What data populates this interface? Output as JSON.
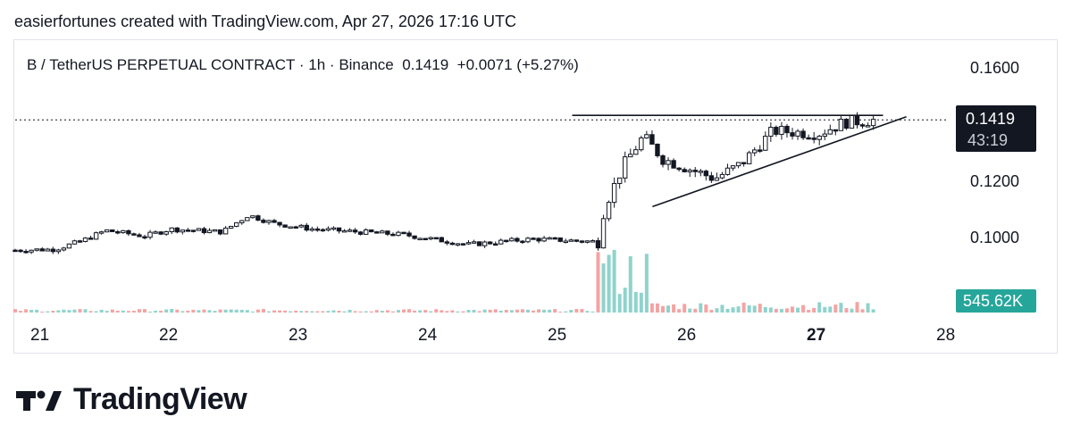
{
  "header": {
    "caption": "easierfortunes created with TradingView.com, Apr 27, 2026 17:16 UTC"
  },
  "legend": {
    "symbol": "B / TetherUS PERPETUAL CONTRACT",
    "sep1": "·",
    "interval": "1h",
    "sep2": "·",
    "exchange": "Binance",
    "last": "0.1419",
    "change": "+0.0071 (+5.27%)"
  },
  "price_axis": {
    "ticks": [
      "0.1600",
      "0.1200",
      "0.1000"
    ],
    "last_price_label": "0.1419",
    "countdown": "43:19",
    "volume_label": "545.62K"
  },
  "time_axis": {
    "ticks": [
      {
        "label": "21",
        "bold": false
      },
      {
        "label": "22",
        "bold": false
      },
      {
        "label": "23",
        "bold": false
      },
      {
        "label": "24",
        "bold": false
      },
      {
        "label": "25",
        "bold": false
      },
      {
        "label": "26",
        "bold": false
      },
      {
        "label": "27",
        "bold": true
      },
      {
        "label": "28",
        "bold": false
      }
    ]
  },
  "brand": {
    "name": "TradingView",
    "logo_icon": "tradingview-logo-icon"
  },
  "colors": {
    "up": "#26a69a",
    "down": "#ef5350",
    "candle": "#131722",
    "volume_up": "#8fd3cc",
    "volume_down": "#f5a3a3"
  },
  "chart_data": {
    "type": "candlestick",
    "interval": "1h",
    "ylim": [
      0.0905,
      0.1705
    ],
    "last_price": 0.1419,
    "x_ticks": [
      "21",
      "22",
      "23",
      "24",
      "25",
      "26",
      "27",
      "28"
    ],
    "keypoints": [
      {
        "day": 21.0,
        "close": 0.0955
      },
      {
        "day": 21.3,
        "close": 0.0958
      },
      {
        "day": 21.5,
        "close": 0.0985
      },
      {
        "day": 21.7,
        "close": 0.1025
      },
      {
        "day": 22.0,
        "close": 0.1005
      },
      {
        "day": 22.2,
        "close": 0.103
      },
      {
        "day": 22.6,
        "close": 0.102
      },
      {
        "day": 22.8,
        "close": 0.108
      },
      {
        "day": 23.0,
        "close": 0.105
      },
      {
        "day": 23.3,
        "close": 0.103
      },
      {
        "day": 24.0,
        "close": 0.101
      },
      {
        "day": 24.5,
        "close": 0.0975
      },
      {
        "day": 25.0,
        "close": 0.0995
      },
      {
        "day": 25.5,
        "close": 0.0985
      },
      {
        "day": 25.55,
        "close": 0.111
      },
      {
        "day": 25.7,
        "close": 0.126
      },
      {
        "day": 25.85,
        "close": 0.136
      },
      {
        "day": 26.0,
        "close": 0.128
      },
      {
        "day": 26.4,
        "close": 0.121
      },
      {
        "day": 26.6,
        "close": 0.126
      },
      {
        "day": 26.85,
        "close": 0.138
      },
      {
        "day": 27.2,
        "close": 0.137
      },
      {
        "day": 27.4,
        "close": 0.141
      },
      {
        "day": 27.65,
        "close": 0.1419
      }
    ],
    "annotations": {
      "resistance": {
        "from_day": 25.3,
        "to_day": 27.7,
        "price": 0.1435
      },
      "trendline": {
        "from": {
          "day": 25.92,
          "price": 0.111
        },
        "to": {
          "day": 27.88,
          "price": 0.143
        }
      }
    }
  }
}
